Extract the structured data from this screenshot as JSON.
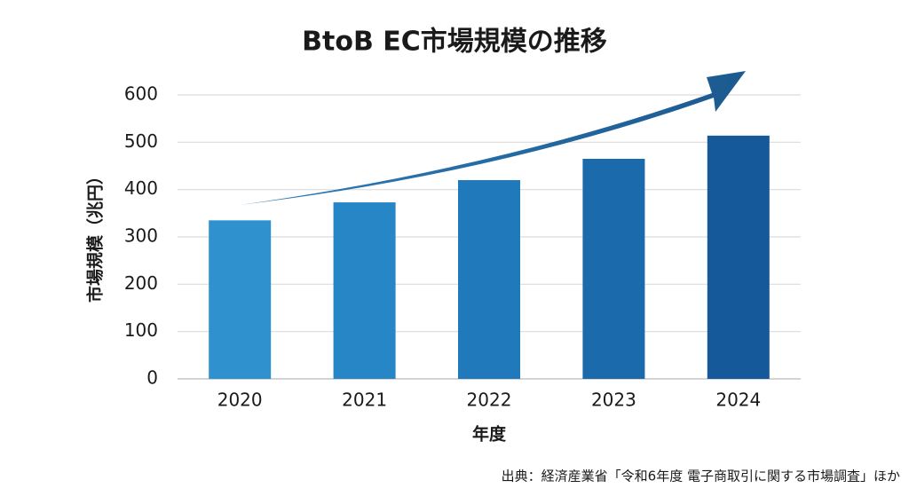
{
  "chart_data": {
    "type": "bar",
    "title": "BtoB EC市場規模の推移",
    "x_label": "年度",
    "y_label": "市場規模（兆円）",
    "source": "出典：経済産業省「令和6年度 電子商取引に関する市場調査」ほか",
    "categories": [
      "2020",
      "2021",
      "2022",
      "2023",
      "2024"
    ],
    "values": [
      335,
      373,
      420,
      465,
      514
    ],
    "colors": [
      "#2f92cf",
      "#2686c6",
      "#1f79bb",
      "#1a6aac",
      "#15599b"
    ],
    "ylim": [
      0,
      600
    ],
    "yticks": [
      0,
      100,
      200,
      300,
      400,
      500,
      600
    ],
    "grid": true
  }
}
